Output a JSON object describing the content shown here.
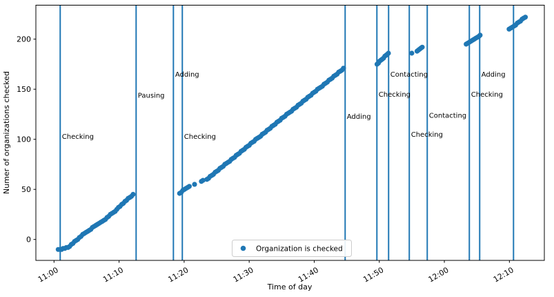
{
  "figure": {
    "background": "#ffffff",
    "accent_color": "#1f77b4",
    "spine_color": "#000000",
    "legend_border_color": "#cccccc"
  },
  "chart_data": {
    "type": "scatter",
    "title": "",
    "xlabel": "Time of day",
    "ylabel": "Numer of organizations checked",
    "grid": false,
    "legend": {
      "label": "Organization is checked",
      "position": "lower center",
      "marker": "circle",
      "marker_color": "#1f77b4"
    },
    "x_unit": "minutes after 11:00",
    "xlim": [
      -2.79,
      75.37
    ],
    "ylim": [
      -20.9,
      233.9
    ],
    "x_ticks": [
      0,
      10,
      20,
      30,
      40,
      50,
      60,
      70
    ],
    "x_tick_labels": [
      "11:00",
      "11:10",
      "11:20",
      "11:30",
      "11:40",
      "11:50",
      "12:00",
      "12:10"
    ],
    "y_ticks": [
      0,
      50,
      100,
      150,
      200
    ],
    "y_tick_labels": [
      "0",
      "50",
      "100",
      "150",
      "200"
    ],
    "series": [
      {
        "name": "Organization is checked",
        "marker": "circle",
        "color": "#1f77b4",
        "points": [
          [
            0.65,
            -10
          ],
          [
            0.9,
            -10
          ],
          [
            1.15,
            -10
          ],
          [
            1.4,
            -9
          ],
          [
            1.65,
            -9
          ],
          [
            1.9,
            -8
          ],
          [
            2.15,
            -8
          ],
          [
            2.4,
            -7
          ],
          [
            2.65,
            -5
          ],
          [
            2.9,
            -4
          ],
          [
            3.15,
            -2
          ],
          [
            3.4,
            -1
          ],
          [
            3.65,
            0
          ],
          [
            3.9,
            2
          ],
          [
            4.15,
            3
          ],
          [
            4.4,
            5
          ],
          [
            4.65,
            6
          ],
          [
            4.9,
            7
          ],
          [
            5.15,
            8
          ],
          [
            5.4,
            9
          ],
          [
            5.65,
            10
          ],
          [
            5.9,
            12
          ],
          [
            6.15,
            13
          ],
          [
            6.4,
            14
          ],
          [
            6.65,
            15
          ],
          [
            6.9,
            16
          ],
          [
            7.15,
            17
          ],
          [
            7.4,
            18
          ],
          [
            7.65,
            19
          ],
          [
            7.9,
            20
          ],
          [
            8.15,
            22
          ],
          [
            8.4,
            23
          ],
          [
            8.65,
            25
          ],
          [
            8.9,
            26
          ],
          [
            9.15,
            27
          ],
          [
            9.4,
            28
          ],
          [
            9.65,
            30
          ],
          [
            9.9,
            32
          ],
          [
            10.15,
            33
          ],
          [
            10.4,
            35
          ],
          [
            10.65,
            36
          ],
          [
            10.9,
            38
          ],
          [
            11.15,
            39
          ],
          [
            11.4,
            41
          ],
          [
            11.65,
            42
          ],
          [
            11.9,
            43
          ],
          [
            12.15,
            45
          ],
          [
            19.3,
            46
          ],
          [
            19.55,
            47
          ],
          [
            19.8,
            49
          ],
          [
            20.05,
            50
          ],
          [
            20.3,
            51
          ],
          [
            20.55,
            52
          ],
          [
            20.8,
            53
          ],
          [
            21.6,
            55
          ],
          [
            22.65,
            58
          ],
          [
            22.9,
            59
          ],
          [
            23.5,
            60
          ],
          [
            23.75,
            61
          ],
          [
            24.0,
            63
          ],
          [
            24.25,
            64
          ],
          [
            24.5,
            65
          ],
          [
            24.75,
            67
          ],
          [
            25.0,
            68
          ],
          [
            25.25,
            69
          ],
          [
            25.5,
            71
          ],
          [
            25.75,
            72
          ],
          [
            26.0,
            73
          ],
          [
            26.25,
            75
          ],
          [
            26.5,
            76
          ],
          [
            26.75,
            77
          ],
          [
            27.0,
            78
          ],
          [
            27.25,
            80
          ],
          [
            27.5,
            81
          ],
          [
            27.75,
            82
          ],
          [
            28.0,
            84
          ],
          [
            28.25,
            85
          ],
          [
            28.5,
            86
          ],
          [
            28.75,
            88
          ],
          [
            29.0,
            89
          ],
          [
            29.25,
            90
          ],
          [
            29.5,
            92
          ],
          [
            29.75,
            93
          ],
          [
            30.0,
            94
          ],
          [
            30.25,
            96
          ],
          [
            30.5,
            97
          ],
          [
            30.75,
            98
          ],
          [
            31.0,
            100
          ],
          [
            31.25,
            101
          ],
          [
            31.5,
            102
          ],
          [
            31.75,
            103
          ],
          [
            32.0,
            105
          ],
          [
            32.25,
            106
          ],
          [
            32.5,
            107
          ],
          [
            32.75,
            109
          ],
          [
            33.0,
            110
          ],
          [
            33.25,
            111
          ],
          [
            33.5,
            113
          ],
          [
            33.75,
            114
          ],
          [
            34.0,
            115
          ],
          [
            34.25,
            117
          ],
          [
            34.5,
            118
          ],
          [
            34.75,
            119
          ],
          [
            35.0,
            121
          ],
          [
            35.25,
            122
          ],
          [
            35.5,
            123
          ],
          [
            35.75,
            125
          ],
          [
            36.0,
            126
          ],
          [
            36.25,
            127
          ],
          [
            36.5,
            128
          ],
          [
            36.75,
            130
          ],
          [
            37.0,
            131
          ],
          [
            37.25,
            132
          ],
          [
            37.5,
            134
          ],
          [
            37.75,
            135
          ],
          [
            38.0,
            136
          ],
          [
            38.25,
            138
          ],
          [
            38.5,
            139
          ],
          [
            38.75,
            140
          ],
          [
            39.0,
            142
          ],
          [
            39.25,
            143
          ],
          [
            39.5,
            144
          ],
          [
            39.75,
            146
          ],
          [
            40.0,
            147
          ],
          [
            40.25,
            148
          ],
          [
            40.5,
            150
          ],
          [
            40.75,
            151
          ],
          [
            41.0,
            152
          ],
          [
            41.25,
            153
          ],
          [
            41.5,
            155
          ],
          [
            41.75,
            156
          ],
          [
            42.0,
            157
          ],
          [
            42.25,
            159
          ],
          [
            42.5,
            160
          ],
          [
            42.75,
            161
          ],
          [
            43.0,
            163
          ],
          [
            43.25,
            164
          ],
          [
            43.5,
            165
          ],
          [
            43.75,
            167
          ],
          [
            44.0,
            168
          ],
          [
            44.25,
            169
          ],
          [
            44.5,
            171
          ],
          [
            49.65,
            175
          ],
          [
            49.85,
            176
          ],
          [
            50.05,
            178
          ],
          [
            50.25,
            179
          ],
          [
            50.45,
            180
          ],
          [
            50.65,
            181
          ],
          [
            50.85,
            183
          ],
          [
            51.05,
            184
          ],
          [
            51.25,
            185
          ],
          [
            51.4,
            186
          ],
          [
            55.0,
            186
          ],
          [
            55.8,
            188
          ],
          [
            56.0,
            189
          ],
          [
            56.2,
            190
          ],
          [
            56.4,
            191
          ],
          [
            56.6,
            192
          ],
          [
            63.35,
            195
          ],
          [
            63.6,
            196
          ],
          [
            63.85,
            197
          ],
          [
            64.1,
            198
          ],
          [
            64.35,
            199
          ],
          [
            64.6,
            200
          ],
          [
            64.85,
            201
          ],
          [
            65.1,
            202
          ],
          [
            65.35,
            203
          ],
          [
            65.5,
            204
          ],
          [
            69.95,
            210
          ],
          [
            70.2,
            211
          ],
          [
            70.45,
            212
          ],
          [
            70.7,
            213
          ],
          [
            70.95,
            214
          ],
          [
            71.2,
            216
          ],
          [
            71.45,
            217
          ],
          [
            71.7,
            218
          ],
          [
            71.95,
            220
          ],
          [
            72.2,
            221
          ],
          [
            72.45,
            222
          ]
        ]
      }
    ],
    "event_lines": [
      {
        "time": "11:00:57",
        "t_min": 0.95,
        "label": "Checking",
        "label_value": 103
      },
      {
        "time": "11:12:37",
        "t_min": 12.62,
        "label": "Pausing",
        "label_value": 144
      },
      {
        "time": "11:18:21",
        "t_min": 18.35,
        "label": "Adding",
        "label_value": 165
      },
      {
        "time": "11:19:43",
        "t_min": 19.72,
        "label": "Checking",
        "label_value": 103
      },
      {
        "time": "11:44:45",
        "t_min": 44.75,
        "label": "Adding",
        "label_value": 123
      },
      {
        "time": "11:49:38",
        "t_min": 49.63,
        "label": "Checking",
        "label_value": 145
      },
      {
        "time": "11:51:26",
        "t_min": 51.43,
        "label": "Contacting",
        "label_value": 165
      },
      {
        "time": "11:54:37",
        "t_min": 54.61,
        "label": "Checking",
        "label_value": 105
      },
      {
        "time": "11:57:22",
        "t_min": 57.37,
        "label": "Contacting",
        "label_value": 124
      },
      {
        "time": "12:03:50",
        "t_min": 63.84,
        "label": "Checking",
        "label_value": 145
      },
      {
        "time": "12:05:26",
        "t_min": 65.43,
        "label": "Adding",
        "label_value": 165
      },
      {
        "time": "12:10:38",
        "t_min": 70.63,
        "label": "",
        "label_value": 0
      }
    ]
  }
}
